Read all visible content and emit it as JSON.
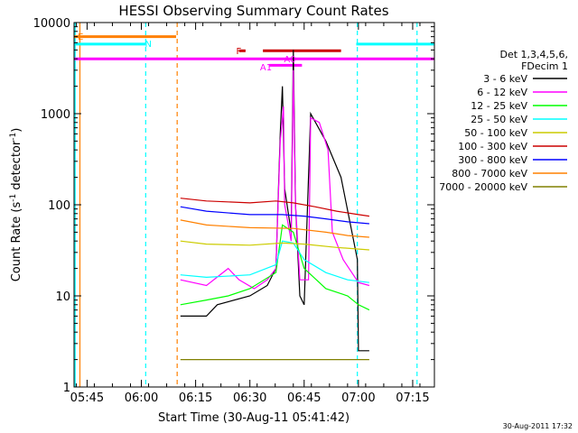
{
  "chart_data": {
    "type": "line",
    "title": "HESSI Observing Summary Count Rates",
    "xlabel": "Start Time (30-Aug-11 05:41:42)",
    "ylabel_main": "Count Rate (s",
    "ylabel_sup1": "-1",
    "ylabel_mid": " detector",
    "ylabel_sup2": "-1",
    "ylabel_end": ")",
    "yscale": "log",
    "ylim": [
      1,
      10000
    ],
    "xlim_minutes": [
      5.69,
      7.35
    ],
    "x_units": "hours of day (UT)",
    "x_ticks": [
      {
        "label": "05:45",
        "value": 5.75
      },
      {
        "label": "06:00",
        "value": 6.0
      },
      {
        "label": "06:15",
        "value": 6.25
      },
      {
        "label": "06:30",
        "value": 6.5
      },
      {
        "label": "06:45",
        "value": 6.75
      },
      {
        "label": "07:00",
        "value": 7.0
      },
      {
        "label": "07:15",
        "value": 7.25
      }
    ],
    "y_ticks": [
      {
        "label": "1",
        "value": 1
      },
      {
        "label": "10",
        "value": 10
      },
      {
        "label": "100",
        "value": 100
      },
      {
        "label": "1000",
        "value": 1000
      },
      {
        "label": "10000",
        "value": 10000
      }
    ],
    "legend_placement": "right",
    "legend_header": [
      "Det 1,3,4,5,6,",
      "FDecim 1"
    ],
    "series": [
      {
        "name": "3 - 6 keV",
        "color": "#000000",
        "points": [
          [
            6.18,
            6
          ],
          [
            6.3,
            6
          ],
          [
            6.35,
            8
          ],
          [
            6.5,
            10
          ],
          [
            6.58,
            13
          ],
          [
            6.62,
            20
          ],
          [
            6.64,
            600
          ],
          [
            6.65,
            2000
          ],
          [
            6.66,
            150
          ],
          [
            6.69,
            50
          ],
          [
            6.7,
            5000
          ],
          [
            6.71,
            100
          ],
          [
            6.73,
            10
          ],
          [
            6.75,
            8
          ],
          [
            6.78,
            1000
          ],
          [
            6.85,
            500
          ],
          [
            6.92,
            200
          ],
          [
            6.97,
            50
          ],
          [
            6.995,
            25
          ],
          [
            7.0,
            2.5
          ],
          [
            7.05,
            2.5
          ]
        ]
      },
      {
        "name": "6 - 12 keV",
        "color": "#ff00ff",
        "points": [
          [
            6.18,
            15
          ],
          [
            6.3,
            13
          ],
          [
            6.4,
            20
          ],
          [
            6.45,
            15
          ],
          [
            6.52,
            12
          ],
          [
            6.58,
            15
          ],
          [
            6.62,
            20
          ],
          [
            6.64,
            500
          ],
          [
            6.655,
            1200
          ],
          [
            6.66,
            100
          ],
          [
            6.69,
            40
          ],
          [
            6.7,
            3000
          ],
          [
            6.71,
            100
          ],
          [
            6.73,
            15
          ],
          [
            6.77,
            15
          ],
          [
            6.78,
            900
          ],
          [
            6.82,
            800
          ],
          [
            6.86,
            400
          ],
          [
            6.88,
            50
          ],
          [
            6.93,
            25
          ],
          [
            7.0,
            14
          ],
          [
            7.05,
            13
          ]
        ]
      },
      {
        "name": "12 - 25 keV",
        "color": "#00ff00",
        "points": [
          [
            6.18,
            8
          ],
          [
            6.3,
            9
          ],
          [
            6.4,
            10
          ],
          [
            6.5,
            12
          ],
          [
            6.62,
            18
          ],
          [
            6.65,
            60
          ],
          [
            6.7,
            50
          ],
          [
            6.75,
            20
          ],
          [
            6.85,
            12
          ],
          [
            6.95,
            10
          ],
          [
            7.0,
            8
          ],
          [
            7.05,
            7
          ]
        ]
      },
      {
        "name": "25 - 50 keV",
        "color": "#00ffff",
        "points": [
          [
            6.18,
            17
          ],
          [
            6.3,
            16
          ],
          [
            6.5,
            17
          ],
          [
            6.62,
            22
          ],
          [
            6.65,
            40
          ],
          [
            6.7,
            38
          ],
          [
            6.75,
            25
          ],
          [
            6.85,
            18
          ],
          [
            6.95,
            15
          ],
          [
            7.05,
            14
          ]
        ]
      },
      {
        "name": "50 - 100 keV",
        "color": "#cccc00",
        "points": [
          [
            6.18,
            40
          ],
          [
            6.3,
            37
          ],
          [
            6.5,
            36
          ],
          [
            6.65,
            38
          ],
          [
            6.75,
            37
          ],
          [
            6.9,
            34
          ],
          [
            7.05,
            32
          ]
        ]
      },
      {
        "name": "100 - 300 keV",
        "color": "#cc0000",
        "points": [
          [
            6.18,
            118
          ],
          [
            6.3,
            110
          ],
          [
            6.5,
            105
          ],
          [
            6.62,
            110
          ],
          [
            6.7,
            105
          ],
          [
            6.8,
            95
          ],
          [
            6.9,
            85
          ],
          [
            7.0,
            78
          ],
          [
            7.05,
            75
          ]
        ]
      },
      {
        "name": "300 - 800 keV",
        "color": "#0000ff",
        "points": [
          [
            6.18,
            95
          ],
          [
            6.3,
            85
          ],
          [
            6.5,
            78
          ],
          [
            6.65,
            78
          ],
          [
            6.75,
            75
          ],
          [
            6.85,
            70
          ],
          [
            6.95,
            65
          ],
          [
            7.05,
            62
          ]
        ]
      },
      {
        "name": "800 - 7000 keV",
        "color": "#ff8000",
        "points": [
          [
            6.18,
            68
          ],
          [
            6.3,
            60
          ],
          [
            6.5,
            56
          ],
          [
            6.7,
            55
          ],
          [
            6.85,
            50
          ],
          [
            6.95,
            46
          ],
          [
            7.05,
            44
          ]
        ]
      },
      {
        "name": "7000 - 20000 keV",
        "color": "#808000",
        "points": [
          [
            6.18,
            2
          ],
          [
            6.3,
            2
          ],
          [
            6.5,
            2
          ],
          [
            6.7,
            2
          ],
          [
            6.9,
            2
          ],
          [
            7.05,
            2
          ]
        ]
      }
    ],
    "vertical_markers": [
      {
        "x": 5.695,
        "color": "#00ffff"
      },
      {
        "x": 5.717,
        "color": "#ff8000"
      },
      {
        "x": 6.02,
        "color": "#00ffff"
      },
      {
        "x": 6.165,
        "color": "#ff8000"
      },
      {
        "x": 6.995,
        "color": "#00ffff"
      },
      {
        "x": 7.27,
        "color": "#00ffff"
      }
    ],
    "annotations": [
      {
        "label": "E",
        "x": 5.69,
        "color": "#ff8000"
      },
      {
        "label": "N",
        "x": 6.0,
        "color": "#00ffff"
      },
      {
        "label": "F",
        "x": 6.42,
        "color": "#cc0000"
      },
      {
        "label": "A0",
        "x": 6.64,
        "color": "#ff00ff"
      },
      {
        "label": "A1",
        "x": 6.53,
        "color": "#ff00ff"
      }
    ],
    "flag_bars": [
      {
        "x0": 5.69,
        "x1": 6.16,
        "y": 7000,
        "color": "#ff8000"
      },
      {
        "x0": 5.69,
        "x1": 6.02,
        "y": 5800,
        "color": "#00ffff"
      },
      {
        "x0": 6.99,
        "x1": 7.35,
        "y": 5800,
        "color": "#00ffff"
      },
      {
        "x0": 6.45,
        "x1": 6.48,
        "y": 4900,
        "color": "#cc0000"
      },
      {
        "x0": 6.56,
        "x1": 6.92,
        "y": 4900,
        "color": "#cc0000"
      },
      {
        "x0": 5.69,
        "x1": 7.35,
        "y": 4000,
        "color": "#ff00ff"
      },
      {
        "x0": 6.59,
        "x1": 6.74,
        "y": 3400,
        "color": "#ff00ff"
      }
    ],
    "footer_date": "30-Aug-2011 17:32"
  }
}
